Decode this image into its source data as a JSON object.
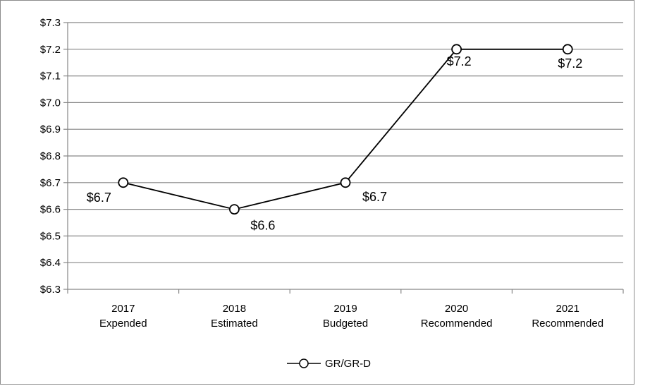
{
  "chart_data": {
    "type": "line",
    "categories": [
      [
        "2017",
        "Expended"
      ],
      [
        "2018",
        "Estimated"
      ],
      [
        "2019",
        "Budgeted"
      ],
      [
        "2020",
        "Recommended"
      ],
      [
        "2021",
        "Recommended"
      ]
    ],
    "series": [
      {
        "name": "GR/GR-D",
        "values": [
          6.7,
          6.6,
          6.7,
          7.2,
          7.2
        ],
        "data_labels": [
          "$6.7",
          "$6.6",
          "$6.7",
          "$7.2",
          "$7.2"
        ],
        "color": "#000000"
      }
    ],
    "yticks": [
      7.3,
      7.2,
      7.1,
      7.0,
      6.9,
      6.8,
      6.7,
      6.6,
      6.5,
      6.4,
      6.3
    ],
    "ytick_labels": [
      "$7.3",
      "$7.2",
      "$7.1",
      "$7.0",
      "$6.9",
      "$6.8",
      "$6.7",
      "$6.6",
      "$6.5",
      "$6.4",
      "$6.3"
    ],
    "ylim": [
      6.3,
      7.3
    ],
    "grid": true,
    "legend_position": "bottom",
    "gridline_color": "#868686",
    "title": "",
    "xlabel": "",
    "ylabel": ""
  }
}
